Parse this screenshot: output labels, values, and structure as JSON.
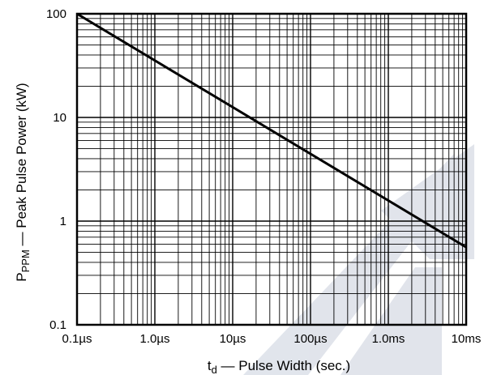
{
  "chart_data": {
    "type": "line",
    "title": "",
    "xlabel_main": "t",
    "xlabel_sub": "d",
    "xlabel_rest": " — Pulse Width (sec.)",
    "ylabel_main": "P",
    "ylabel_sub": "PPM",
    "ylabel_rest": " — Peak Pulse Power (kW)",
    "x_scale": "log",
    "y_scale": "log",
    "xlim": [
      1e-07,
      0.01
    ],
    "ylim": [
      0.1,
      100
    ],
    "grid": true,
    "x_ticks": [
      {
        "value": 1e-07,
        "label": "0.1µs"
      },
      {
        "value": 1e-06,
        "label": "1.0µs"
      },
      {
        "value": 1e-05,
        "label": "10µs"
      },
      {
        "value": 0.0001,
        "label": "100µs"
      },
      {
        "value": 0.001,
        "label": "1.0ms"
      },
      {
        "value": 0.01,
        "label": "10ms"
      }
    ],
    "y_ticks": [
      {
        "value": 0.1,
        "label": "0.1"
      },
      {
        "value": 1,
        "label": "1"
      },
      {
        "value": 10,
        "label": "10"
      },
      {
        "value": 100,
        "label": "100"
      }
    ],
    "series": [
      {
        "x": [
          1e-07,
          0.01
        ],
        "y": [
          100,
          0.56
        ],
        "color": "#000000"
      }
    ],
    "watermark_color": "#c9cfdc"
  }
}
